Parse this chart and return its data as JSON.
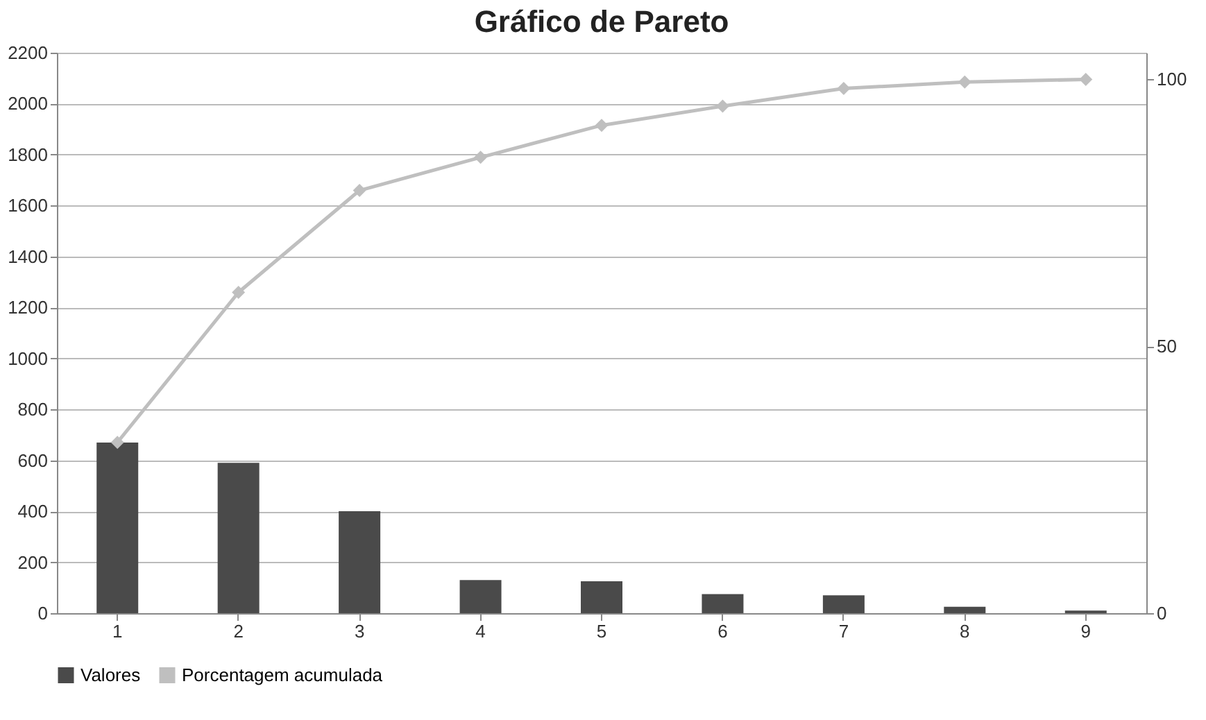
{
  "chart_data": {
    "type": "bar",
    "title": "Gráfico de Pareto",
    "categories": [
      "1",
      "2",
      "3",
      "4",
      "5",
      "6",
      "7",
      "8",
      "9"
    ],
    "series": [
      {
        "name": "Valores",
        "color": "#4a4a4a",
        "values": [
          670,
          590,
          400,
          130,
          125,
          75,
          70,
          25,
          10
        ]
      },
      {
        "name": "Porcentagem acumulada",
        "type": "line",
        "axis": "y2",
        "color": "#bfbfbf",
        "values": [
          32,
          60.1,
          79.2,
          85.4,
          91.4,
          95,
          98.3,
          99.5,
          100
        ]
      }
    ],
    "ylim": [
      0,
      2200
    ],
    "yticks": [
      0,
      200,
      400,
      600,
      800,
      1000,
      1200,
      1400,
      1600,
      1800,
      2000,
      2200
    ],
    "y2lim": [
      0,
      105
    ],
    "y2ticks": [
      0,
      50,
      100
    ],
    "grid": "y",
    "legend": "bottom",
    "marker": "diamond",
    "line_style": "solid"
  }
}
